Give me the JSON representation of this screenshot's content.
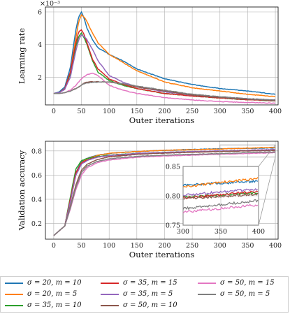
{
  "chart_data": [
    {
      "type": "line",
      "ylabel": "Learning rate",
      "xlabel": "Outer iterations",
      "y_multiplier": "×10⁻³",
      "xlim": [
        -15,
        405
      ],
      "ylim": [
        0.3,
        6.3
      ],
      "xticks": [
        0,
        50,
        100,
        150,
        200,
        250,
        300,
        350,
        400
      ],
      "yticks": [
        2,
        4,
        6
      ],
      "grid": true,
      "series": [
        {
          "name": "σ = 20, m = 10",
          "color": "#1f77b4",
          "x": [
            0,
            10,
            20,
            30,
            40,
            45,
            50,
            55,
            60,
            70,
            80,
            100,
            125,
            150,
            200,
            250,
            300,
            350,
            400
          ],
          "y": [
            1.0,
            1.1,
            1.4,
            2.6,
            4.9,
            5.7,
            6.0,
            5.6,
            5.0,
            4.3,
            3.8,
            3.4,
            3.0,
            2.5,
            1.9,
            1.55,
            1.3,
            1.15,
            0.95
          ]
        },
        {
          "name": "σ = 20, m = 5",
          "color": "#ff7f0e",
          "x": [
            0,
            10,
            20,
            30,
            40,
            45,
            50,
            55,
            60,
            70,
            80,
            100,
            125,
            150,
            200,
            250,
            300,
            350,
            400
          ],
          "y": [
            1.0,
            1.05,
            1.3,
            2.3,
            4.4,
            5.4,
            5.8,
            5.7,
            5.4,
            4.7,
            4.1,
            3.4,
            2.9,
            2.4,
            1.7,
            1.35,
            1.15,
            0.95,
            0.8
          ]
        },
        {
          "name": "σ = 35, m = 10",
          "color": "#2ca02c",
          "x": [
            0,
            10,
            20,
            30,
            40,
            45,
            50,
            55,
            60,
            70,
            80,
            100,
            125,
            150,
            200,
            250,
            300,
            350,
            400
          ],
          "y": [
            1.0,
            1.05,
            1.3,
            2.2,
            3.9,
            4.5,
            4.7,
            4.4,
            4.0,
            3.0,
            2.3,
            1.8,
            1.5,
            1.3,
            1.0,
            0.85,
            0.72,
            0.62,
            0.55
          ]
        },
        {
          "name": "σ = 35, m = 15",
          "color": "#d62728",
          "x": [
            0,
            10,
            20,
            30,
            40,
            45,
            50,
            55,
            60,
            70,
            80,
            100,
            125,
            150,
            200,
            250,
            300,
            350,
            400
          ],
          "y": [
            1.0,
            1.05,
            1.3,
            2.3,
            4.1,
            4.8,
            4.9,
            4.6,
            4.1,
            3.1,
            2.5,
            1.9,
            1.55,
            1.3,
            1.0,
            0.85,
            0.72,
            0.62,
            0.55
          ]
        },
        {
          "name": "σ = 35, m = 5",
          "color": "#9467bd",
          "x": [
            0,
            10,
            20,
            30,
            40,
            45,
            50,
            55,
            60,
            70,
            80,
            100,
            125,
            150,
            200,
            250,
            300,
            350,
            400
          ],
          "y": [
            1.0,
            1.05,
            1.25,
            2.0,
            3.6,
            4.3,
            4.6,
            4.5,
            4.3,
            3.7,
            3.0,
            2.1,
            1.7,
            1.4,
            1.1,
            0.9,
            0.78,
            0.68,
            0.6
          ]
        },
        {
          "name": "σ = 50, m = 10",
          "color": "#8c564b",
          "x": [
            0,
            10,
            20,
            30,
            40,
            50,
            55,
            60,
            70,
            80,
            100,
            125,
            150,
            200,
            250,
            300,
            350,
            400
          ],
          "y": [
            1.0,
            1.0,
            1.05,
            1.15,
            1.3,
            1.5,
            1.65,
            1.7,
            1.72,
            1.72,
            1.7,
            1.6,
            1.4,
            1.15,
            0.9,
            0.75,
            0.65,
            0.55
          ]
        },
        {
          "name": "σ = 50, m = 15",
          "color": "#e377c2",
          "x": [
            0,
            10,
            20,
            30,
            40,
            50,
            60,
            70,
            80,
            90,
            100,
            125,
            150,
            200,
            250,
            300,
            350,
            400
          ],
          "y": [
            1.0,
            1.0,
            1.05,
            1.2,
            1.5,
            1.9,
            2.15,
            2.25,
            2.1,
            1.8,
            1.5,
            1.2,
            1.0,
            0.75,
            0.6,
            0.5,
            0.45,
            0.4
          ]
        },
        {
          "name": "σ = 50, m = 5",
          "color": "#7f7f7f",
          "x": [
            0,
            10,
            20,
            30,
            40,
            50,
            55,
            60,
            70,
            80,
            100,
            125,
            150,
            200,
            250,
            300,
            350,
            400
          ],
          "y": [
            1.0,
            1.0,
            1.05,
            1.15,
            1.3,
            1.5,
            1.6,
            1.65,
            1.68,
            1.7,
            1.7,
            1.6,
            1.45,
            1.2,
            0.95,
            0.8,
            0.68,
            0.6
          ]
        }
      ]
    },
    {
      "type": "line",
      "ylabel": "Validation accuracy",
      "xlabel": "Outer iterations",
      "xlim": [
        -15,
        405
      ],
      "ylim": [
        0.07,
        0.88
      ],
      "xticks": [
        0,
        50,
        100,
        150,
        200,
        250,
        300,
        350,
        400
      ],
      "yticks": [
        0.2,
        0.4,
        0.6,
        0.8
      ],
      "grid": true,
      "inset": {
        "xlim": [
          300,
          400
        ],
        "ylim": [
          0.75,
          0.85
        ],
        "xticks": [
          300,
          350,
          400
        ],
        "yticks": [
          0.75,
          0.8,
          0.85
        ],
        "final": {
          "σ = 20, m = 10": 0.825,
          "σ = 20, m = 5": 0.83,
          "σ = 35, m = 10": 0.805,
          "σ = 35, m = 15": 0.808,
          "σ = 35, m = 5": 0.812,
          "σ = 50, m = 10": 0.803,
          "σ = 50, m = 15": 0.785,
          "σ = 50, m = 5": 0.792
        },
        "start": {
          "σ = 20, m = 10": 0.818,
          "σ = 20, m = 5": 0.815,
          "σ = 35, m = 10": 0.798,
          "σ = 35, m = 15": 0.796,
          "σ = 35, m = 5": 0.801,
          "σ = 50, m = 10": 0.795,
          "σ = 50, m = 15": 0.772,
          "σ = 50, m = 5": 0.778
        }
      },
      "series": [
        {
          "name": "σ = 20, m = 10",
          "color": "#1f77b4",
          "x": [
            0,
            10,
            20,
            30,
            40,
            50,
            60,
            80,
            100,
            150,
            200,
            250,
            300,
            350,
            400
          ],
          "y": [
            0.1,
            0.14,
            0.18,
            0.4,
            0.62,
            0.71,
            0.74,
            0.765,
            0.78,
            0.795,
            0.805,
            0.812,
            0.818,
            0.822,
            0.825
          ]
        },
        {
          "name": "σ = 20, m = 5",
          "color": "#ff7f0e",
          "x": [
            0,
            10,
            20,
            30,
            40,
            50,
            60,
            80,
            100,
            150,
            200,
            250,
            300,
            350,
            400
          ],
          "y": [
            0.1,
            0.14,
            0.18,
            0.38,
            0.6,
            0.7,
            0.735,
            0.765,
            0.78,
            0.795,
            0.805,
            0.81,
            0.815,
            0.823,
            0.83
          ]
        },
        {
          "name": "σ = 35, m = 10",
          "color": "#2ca02c",
          "x": [
            0,
            10,
            20,
            30,
            40,
            50,
            60,
            80,
            100,
            150,
            200,
            250,
            300,
            350,
            400
          ],
          "y": [
            0.1,
            0.14,
            0.18,
            0.42,
            0.65,
            0.72,
            0.735,
            0.755,
            0.765,
            0.78,
            0.788,
            0.793,
            0.798,
            0.802,
            0.805
          ]
        },
        {
          "name": "σ = 35, m = 15",
          "color": "#d62728",
          "x": [
            0,
            10,
            20,
            30,
            40,
            50,
            60,
            80,
            100,
            150,
            200,
            250,
            300,
            350,
            400
          ],
          "y": [
            0.1,
            0.14,
            0.18,
            0.4,
            0.62,
            0.7,
            0.725,
            0.75,
            0.76,
            0.775,
            0.785,
            0.79,
            0.796,
            0.802,
            0.808
          ]
        },
        {
          "name": "σ = 35, m = 5",
          "color": "#9467bd",
          "x": [
            0,
            10,
            20,
            30,
            40,
            50,
            60,
            80,
            100,
            150,
            200,
            250,
            300,
            350,
            400
          ],
          "y": [
            0.1,
            0.14,
            0.18,
            0.38,
            0.6,
            0.69,
            0.72,
            0.75,
            0.762,
            0.78,
            0.788,
            0.795,
            0.801,
            0.806,
            0.812
          ]
        },
        {
          "name": "σ = 50, m = 10",
          "color": "#8c564b",
          "x": [
            0,
            10,
            20,
            30,
            40,
            50,
            60,
            80,
            100,
            150,
            200,
            250,
            300,
            350,
            400
          ],
          "y": [
            0.1,
            0.14,
            0.18,
            0.34,
            0.52,
            0.64,
            0.69,
            0.73,
            0.75,
            0.772,
            0.782,
            0.789,
            0.795,
            0.8,
            0.803
          ]
        },
        {
          "name": "σ = 50, m = 15",
          "color": "#e377c2",
          "x": [
            0,
            10,
            20,
            30,
            40,
            50,
            60,
            80,
            100,
            150,
            200,
            250,
            300,
            350,
            400
          ],
          "y": [
            0.1,
            0.14,
            0.18,
            0.32,
            0.48,
            0.6,
            0.66,
            0.705,
            0.725,
            0.748,
            0.758,
            0.765,
            0.772,
            0.779,
            0.785
          ]
        },
        {
          "name": "σ = 50, m = 5",
          "color": "#7f7f7f",
          "x": [
            0,
            10,
            20,
            30,
            40,
            50,
            60,
            80,
            100,
            150,
            200,
            250,
            300,
            350,
            400
          ],
          "y": [
            0.1,
            0.14,
            0.18,
            0.33,
            0.5,
            0.62,
            0.675,
            0.715,
            0.735,
            0.755,
            0.765,
            0.772,
            0.778,
            0.786,
            0.792
          ]
        }
      ]
    }
  ]
}
